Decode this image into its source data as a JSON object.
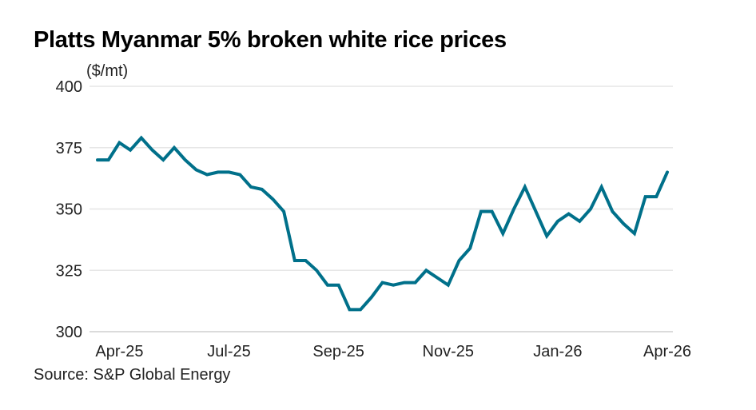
{
  "chart_data": {
    "type": "line",
    "title": "Platts Myanmar 5% broken white rice prices",
    "ylabel": "($/mt)",
    "source": "Source: S&P Global Energy",
    "ylim": [
      300,
      400
    ],
    "yticks": [
      300,
      325,
      350,
      375,
      400
    ],
    "xtick_labels": [
      {
        "label": "Apr-25",
        "index": 2
      },
      {
        "label": "Jul-25",
        "index": 12
      },
      {
        "label": "Sep-25",
        "index": 22
      },
      {
        "label": "Nov-25",
        "index": 32
      },
      {
        "label": "Jan-26",
        "index": 42
      },
      {
        "label": "Apr-26",
        "index": 52
      }
    ],
    "grid": true,
    "line_color": "#00708a",
    "values": [
      370,
      370,
      377,
      374,
      379,
      374,
      370,
      375,
      370,
      366,
      364,
      365,
      365,
      364,
      359,
      358,
      354,
      349,
      329,
      329,
      325,
      319,
      319,
      309,
      309,
      314,
      320,
      319,
      320,
      320,
      325,
      322,
      319,
      329,
      334,
      349,
      349,
      340,
      350,
      359,
      349,
      339,
      345,
      348,
      345,
      350,
      359,
      349,
      344,
      340,
      355,
      355,
      365
    ]
  }
}
